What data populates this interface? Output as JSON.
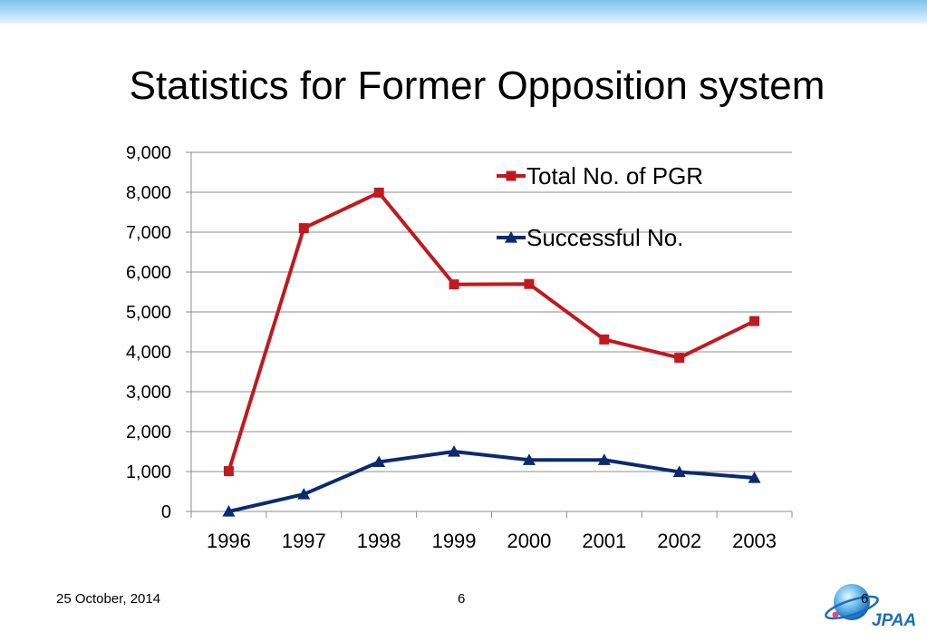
{
  "slide": {
    "title": "Statistics for Former Opposition system",
    "footer_date": "25 October, 2014",
    "page_number": "6",
    "page_number_right": "6",
    "logo_text": "JPAA"
  },
  "colors": {
    "top_bar": "#8fcaf0",
    "series_total": "#c0191f",
    "series_success": "#0b2a6f",
    "grid": "#8c8c8c",
    "logo_blue": "#1a6fb8"
  },
  "chart_data": {
    "type": "line",
    "categories": [
      "1996",
      "1997",
      "1998",
      "1999",
      "2000",
      "2001",
      "2002",
      "2003"
    ],
    "series": [
      {
        "name": "Total No. of PGR",
        "marker": "square",
        "values": [
          1010,
          7100,
          7990,
          5690,
          5700,
          4310,
          3850,
          4770
        ]
      },
      {
        "name": "Successful No.",
        "marker": "triangle",
        "values": [
          0,
          430,
          1240,
          1500,
          1290,
          1290,
          990,
          840
        ]
      }
    ],
    "ylim": [
      0,
      9000
    ],
    "yticks": [
      0,
      1000,
      2000,
      3000,
      4000,
      5000,
      6000,
      7000,
      8000,
      9000
    ],
    "ytick_labels": [
      "0",
      "1,000",
      "2,000",
      "3,000",
      "4,000",
      "5,000",
      "6,000",
      "7,000",
      "8,000",
      "9,000"
    ],
    "grid": true,
    "legend_position": "top-right",
    "title": "",
    "xlabel": "",
    "ylabel": ""
  }
}
